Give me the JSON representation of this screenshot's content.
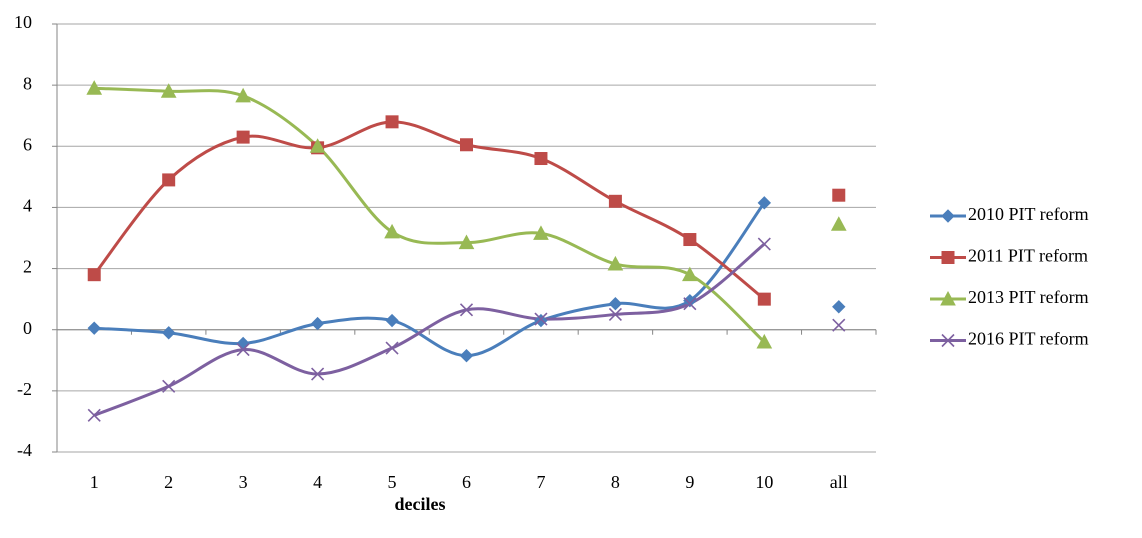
{
  "chart_data": {
    "type": "line",
    "x_label": "deciles",
    "categories": [
      "1",
      "2",
      "3",
      "4",
      "5",
      "6",
      "7",
      "8",
      "9",
      "10",
      "all"
    ],
    "series": [
      {
        "name": "2010 PIT reform",
        "color": "#4a7ebb",
        "marker": "diamond",
        "values": [
          0.05,
          -0.1,
          -0.45,
          0.2,
          0.3,
          -0.85,
          0.3,
          0.85,
          0.95,
          4.15,
          0.75
        ]
      },
      {
        "name": "2011 PIT reform",
        "color": "#be4b48",
        "marker": "square",
        "values": [
          1.8,
          4.9,
          6.3,
          5.95,
          6.8,
          6.05,
          5.6,
          4.2,
          2.95,
          1.0,
          4.4
        ]
      },
      {
        "name": "2013 PIT reform",
        "color": "#98b954",
        "marker": "triangle",
        "values": [
          7.9,
          7.8,
          7.65,
          6.0,
          3.2,
          2.85,
          3.15,
          2.15,
          1.8,
          -0.4,
          3.45
        ]
      },
      {
        "name": "2016 PIT reform",
        "color": "#7d60a0",
        "marker": "x",
        "values": [
          -2.8,
          -1.85,
          -0.65,
          -1.45,
          -0.6,
          0.65,
          0.35,
          0.5,
          0.85,
          2.8,
          0.15
        ]
      }
    ],
    "ylim": [
      -4,
      10
    ],
    "yticks": [
      -4,
      -2,
      0,
      2,
      4,
      6,
      8,
      10
    ],
    "grid": true,
    "smooth": true,
    "legend": "right"
  }
}
